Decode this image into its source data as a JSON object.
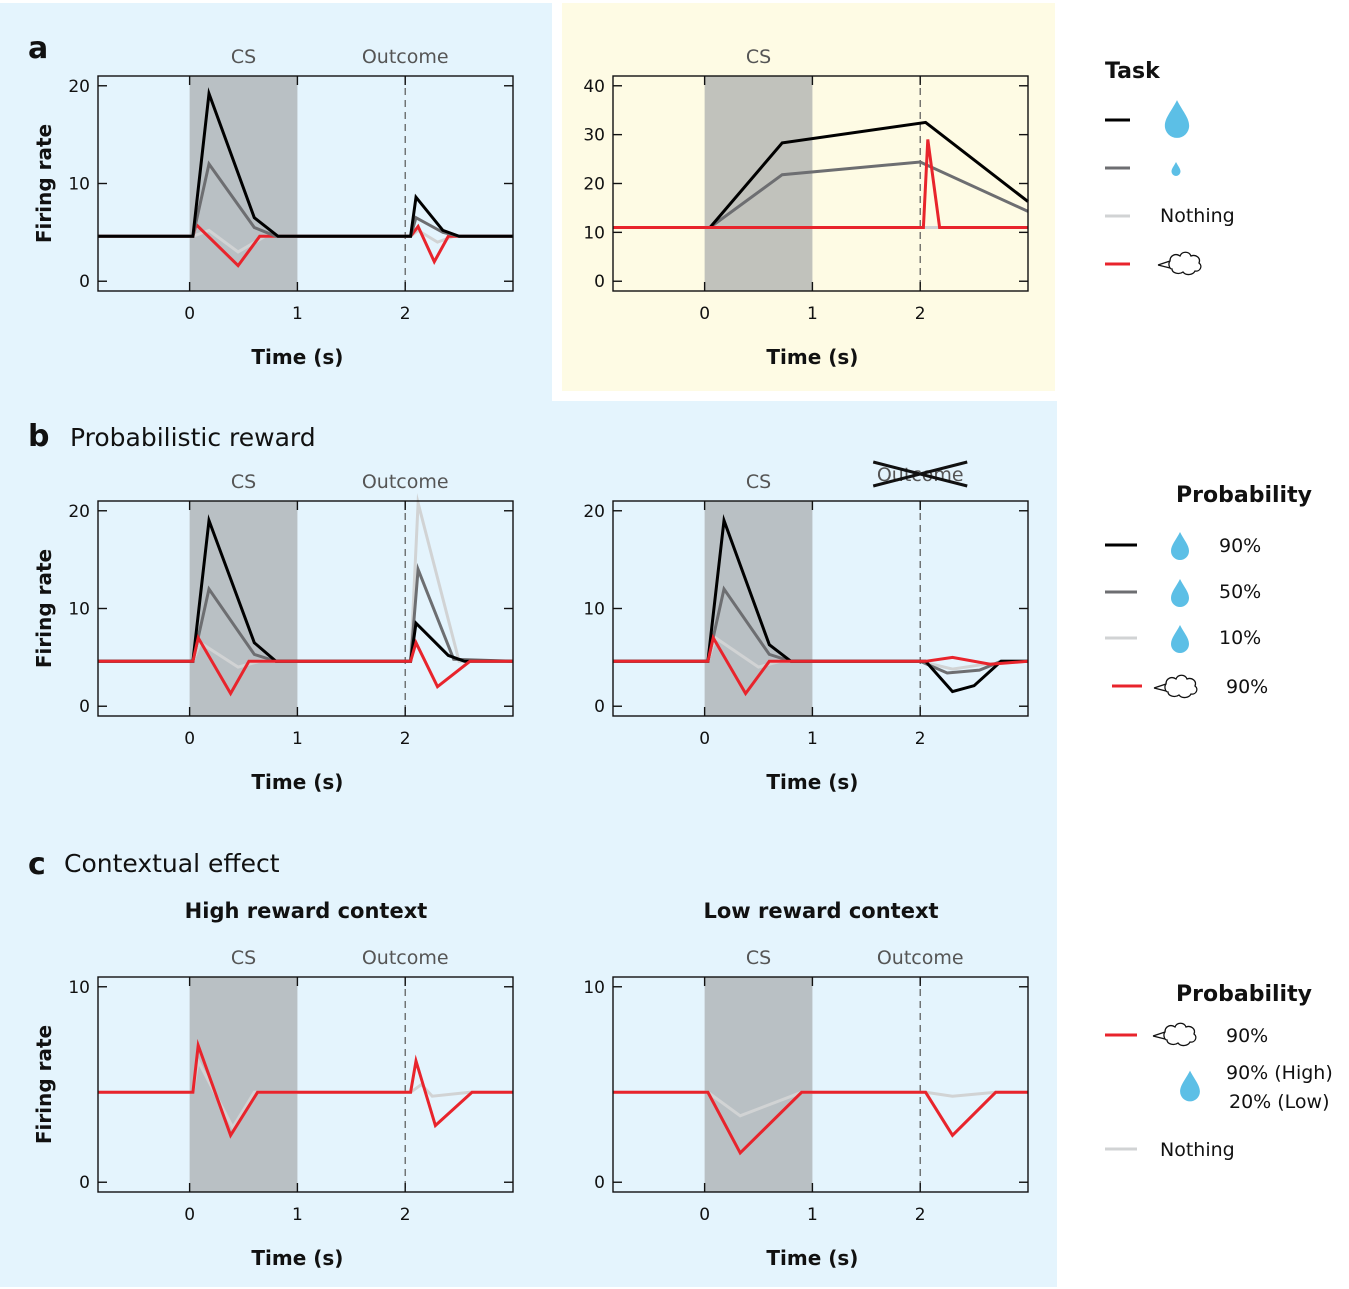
{
  "colors": {
    "bg_blue": "#e4f4fd",
    "bg_yellow": "#fefbe4",
    "cs_shade": "#a6a9ab",
    "large_reward": "#000000",
    "small_reward": "#6d6e71",
    "nothing": "#d1d3d4",
    "airpuff": "#e8242c",
    "drop": "#5cbfe6"
  },
  "panels": {
    "a": {
      "letter": "a",
      "title": ""
    },
    "b": {
      "letter": "b",
      "title": "Probabilistic reward"
    },
    "c": {
      "letter": "c",
      "title": "Contextual effect",
      "left_title": "High reward context",
      "right_title": "Low reward context"
    }
  },
  "legends": {
    "task": {
      "title": "Task",
      "items": [
        {
          "color": "#000000",
          "icon": "large-drop-icon",
          "label": ""
        },
        {
          "color": "#6d6e71",
          "icon": "small-drop-icon",
          "label": ""
        },
        {
          "color": "#d1d3d4",
          "icon": "",
          "label": "Nothing"
        },
        {
          "color": "#e8242c",
          "icon": "airpuff-icon",
          "label": ""
        }
      ]
    },
    "probability_b": {
      "title": "Probability",
      "items": [
        {
          "color": "#000000",
          "icon": "drop-icon",
          "label": "90%"
        },
        {
          "color": "#6d6e71",
          "icon": "drop-icon",
          "label": "50%"
        },
        {
          "color": "#d1d3d4",
          "icon": "drop-icon",
          "label": "10%"
        },
        {
          "color": "#e8242c",
          "icon": "airpuff-icon",
          "label": "90%"
        }
      ]
    },
    "probability_c": {
      "title": "Probability",
      "items": [
        {
          "color": "#e8242c",
          "icon": "airpuff-icon",
          "label": "90%"
        },
        {
          "color": "",
          "icon": "drop-icon",
          "label": "90% (High)",
          "label2": "20% (Low)"
        },
        {
          "color": "#d1d3d4",
          "icon": "",
          "label": "Nothing"
        }
      ]
    }
  },
  "chart_data": [
    {
      "id": "a-left",
      "type": "line",
      "xlabel": "Time (s)",
      "ylabel": "Firing rate",
      "xlim": [
        -0.85,
        3.0
      ],
      "ylim": [
        -1,
        21
      ],
      "xticks": [
        0,
        1,
        2
      ],
      "yticks": [
        0,
        10,
        20
      ],
      "cs_label": "CS",
      "outcome_label": "Outcome",
      "outcome_struck": false,
      "cs_window": [
        0,
        1
      ],
      "outcome_time": 2,
      "series": [
        {
          "color": "#d1d3d4",
          "points": [
            [
              -0.85,
              4.6
            ],
            [
              0.03,
              4.6
            ],
            [
              0.18,
              5.2
            ],
            [
              0.45,
              3.0
            ],
            [
              0.7,
              4.6
            ],
            [
              2.05,
              4.6
            ],
            [
              2.12,
              5.2
            ],
            [
              2.3,
              4.0
            ],
            [
              2.45,
              4.6
            ],
            [
              3.0,
              4.6
            ]
          ]
        },
        {
          "color": "#e8242c",
          "points": [
            [
              -0.85,
              4.6
            ],
            [
              0.03,
              4.6
            ],
            [
              0.06,
              5.8
            ],
            [
              0.45,
              1.6
            ],
            [
              0.65,
              4.6
            ],
            [
              2.05,
              4.6
            ],
            [
              2.12,
              5.6
            ],
            [
              2.27,
              2.0
            ],
            [
              2.4,
              4.6
            ],
            [
              3.0,
              4.6
            ]
          ]
        },
        {
          "color": "#6d6e71",
          "points": [
            [
              -0.85,
              4.6
            ],
            [
              0.03,
              4.6
            ],
            [
              0.18,
              12.0
            ],
            [
              0.6,
              5.5
            ],
            [
              0.8,
              4.6
            ],
            [
              2.05,
              4.6
            ],
            [
              2.1,
              6.5
            ],
            [
              2.35,
              5.0
            ],
            [
              2.5,
              4.6
            ],
            [
              3.0,
              4.6
            ]
          ]
        },
        {
          "color": "#000000",
          "points": [
            [
              -0.85,
              4.6
            ],
            [
              0.03,
              4.6
            ],
            [
              0.18,
              19.2
            ],
            [
              0.6,
              6.5
            ],
            [
              0.82,
              4.6
            ],
            [
              2.05,
              4.6
            ],
            [
              2.1,
              8.6
            ],
            [
              2.35,
              5.2
            ],
            [
              2.5,
              4.6
            ],
            [
              3.0,
              4.6
            ]
          ]
        }
      ]
    },
    {
      "id": "a-right",
      "type": "line",
      "xlabel": "Time (s)",
      "ylabel": "",
      "xlim": [
        -0.85,
        3.0
      ],
      "ylim": [
        -2,
        42
      ],
      "xticks": [
        0,
        1,
        2
      ],
      "yticks": [
        0,
        10,
        20,
        30,
        40
      ],
      "cs_label": "CS",
      "outcome_label": "",
      "outcome_struck": false,
      "cs_window": [
        0,
        1
      ],
      "outcome_time": 2,
      "series": [
        {
          "color": "#d1d3d4",
          "points": [
            [
              -0.85,
              11
            ],
            [
              3.0,
              11
            ]
          ]
        },
        {
          "color": "#6d6e71",
          "points": [
            [
              -0.85,
              11
            ],
            [
              0.05,
              11
            ],
            [
              0.72,
              21.8
            ],
            [
              2.0,
              24.4
            ],
            [
              3.0,
              14.3
            ]
          ]
        },
        {
          "color": "#000000",
          "points": [
            [
              -0.85,
              11
            ],
            [
              0.05,
              11
            ],
            [
              0.72,
              28.3
            ],
            [
              2.05,
              32.5
            ],
            [
              3.0,
              16.3
            ]
          ]
        },
        {
          "color": "#e8242c",
          "points": [
            [
              -0.85,
              11
            ],
            [
              2.03,
              11
            ],
            [
              2.07,
              29
            ],
            [
              2.18,
              11
            ],
            [
              3.0,
              11
            ]
          ]
        }
      ]
    },
    {
      "id": "b-left",
      "type": "line",
      "xlabel": "Time (s)",
      "ylabel": "Firing rate",
      "xlim": [
        -0.85,
        3.0
      ],
      "ylim": [
        -1,
        21
      ],
      "xticks": [
        0,
        1,
        2
      ],
      "yticks": [
        0,
        10,
        20
      ],
      "cs_label": "CS",
      "outcome_label": "Outcome",
      "outcome_struck": false,
      "cs_window": [
        0,
        1
      ],
      "outcome_time": 2,
      "series": [
        {
          "color": "#d1d3d4",
          "points": [
            [
              -0.85,
              4.6
            ],
            [
              0.03,
              4.6
            ],
            [
              0.1,
              6.5
            ],
            [
              0.45,
              4.0
            ],
            [
              0.65,
              4.6
            ],
            [
              2.05,
              4.6
            ],
            [
              2.12,
              20.8
            ],
            [
              2.5,
              4.6
            ],
            [
              3.0,
              4.6
            ]
          ]
        },
        {
          "color": "#6d6e71",
          "points": [
            [
              -0.85,
              4.6
            ],
            [
              0.03,
              4.6
            ],
            [
              0.18,
              12.0
            ],
            [
              0.6,
              5.3
            ],
            [
              0.8,
              4.6
            ],
            [
              2.05,
              4.6
            ],
            [
              2.12,
              14.0
            ],
            [
              2.45,
              4.8
            ],
            [
              3.0,
              4.6
            ]
          ]
        },
        {
          "color": "#000000",
          "points": [
            [
              -0.85,
              4.6
            ],
            [
              0.03,
              4.6
            ],
            [
              0.18,
              19.0
            ],
            [
              0.6,
              6.5
            ],
            [
              0.8,
              4.6
            ],
            [
              2.05,
              4.6
            ],
            [
              2.1,
              8.5
            ],
            [
              2.4,
              5.2
            ],
            [
              2.55,
              4.6
            ],
            [
              3.0,
              4.6
            ]
          ]
        },
        {
          "color": "#e8242c",
          "points": [
            [
              -0.85,
              4.6
            ],
            [
              0.03,
              4.6
            ],
            [
              0.08,
              7.0
            ],
            [
              0.38,
              1.3
            ],
            [
              0.55,
              4.6
            ],
            [
              2.05,
              4.6
            ],
            [
              2.1,
              6.5
            ],
            [
              2.3,
              2.0
            ],
            [
              2.6,
              4.6
            ],
            [
              3.0,
              4.6
            ]
          ]
        }
      ]
    },
    {
      "id": "b-right",
      "type": "line",
      "xlabel": "Time (s)",
      "ylabel": "",
      "xlim": [
        -0.85,
        3.0
      ],
      "ylim": [
        -1,
        21
      ],
      "xticks": [
        0,
        1,
        2
      ],
      "yticks": [
        0,
        10,
        20
      ],
      "cs_label": "CS",
      "outcome_label": "Outcome",
      "outcome_struck": true,
      "cs_window": [
        0,
        1
      ],
      "outcome_time": 2,
      "series": [
        {
          "color": "#d1d3d4",
          "points": [
            [
              -0.85,
              4.6
            ],
            [
              0.03,
              4.6
            ],
            [
              0.1,
              7.0
            ],
            [
              0.5,
              4.0
            ],
            [
              0.7,
              4.6
            ],
            [
              2.0,
              4.6
            ],
            [
              2.3,
              3.8
            ],
            [
              2.6,
              4.3
            ],
            [
              3.0,
              4.6
            ]
          ]
        },
        {
          "color": "#6d6e71",
          "points": [
            [
              -0.85,
              4.6
            ],
            [
              0.03,
              4.6
            ],
            [
              0.18,
              12.0
            ],
            [
              0.6,
              5.3
            ],
            [
              0.8,
              4.6
            ],
            [
              2.0,
              4.6
            ],
            [
              2.25,
              3.4
            ],
            [
              2.55,
              3.7
            ],
            [
              2.75,
              4.6
            ],
            [
              3.0,
              4.6
            ]
          ]
        },
        {
          "color": "#000000",
          "points": [
            [
              -0.85,
              4.6
            ],
            [
              0.03,
              4.6
            ],
            [
              0.18,
              19.0
            ],
            [
              0.6,
              6.3
            ],
            [
              0.8,
              4.6
            ],
            [
              2.05,
              4.6
            ],
            [
              2.3,
              1.5
            ],
            [
              2.5,
              2.1
            ],
            [
              2.75,
              4.6
            ],
            [
              3.0,
              4.6
            ]
          ]
        },
        {
          "color": "#e8242c",
          "points": [
            [
              -0.85,
              4.6
            ],
            [
              0.03,
              4.6
            ],
            [
              0.08,
              7.0
            ],
            [
              0.38,
              1.3
            ],
            [
              0.6,
              4.6
            ],
            [
              2.05,
              4.6
            ],
            [
              2.3,
              5.0
            ],
            [
              2.65,
              4.3
            ],
            [
              3.0,
              4.6
            ]
          ]
        }
      ]
    },
    {
      "id": "c-left",
      "type": "line",
      "xlabel": "Time (s)",
      "ylabel": "Firing rate",
      "xlim": [
        -0.85,
        3.0
      ],
      "ylim": [
        -0.5,
        10.5
      ],
      "xticks": [
        0,
        1,
        2
      ],
      "yticks": [
        0,
        10
      ],
      "cs_label": "CS",
      "outcome_label": "Outcome",
      "outcome_struck": false,
      "cs_window": [
        0,
        1
      ],
      "outcome_time": 2,
      "series": [
        {
          "color": "#d1d3d4",
          "points": [
            [
              -0.85,
              4.6
            ],
            [
              0.03,
              4.6
            ],
            [
              0.08,
              6.2
            ],
            [
              0.4,
              2.8
            ],
            [
              0.6,
              4.6
            ],
            [
              2.05,
              4.6
            ],
            [
              2.15,
              5.0
            ],
            [
              2.25,
              4.4
            ],
            [
              2.6,
              4.6
            ],
            [
              3.0,
              4.6
            ]
          ]
        },
        {
          "color": "#e8242c",
          "points": [
            [
              -0.85,
              4.6
            ],
            [
              0.03,
              4.6
            ],
            [
              0.08,
              7.0
            ],
            [
              0.38,
              2.4
            ],
            [
              0.63,
              4.6
            ],
            [
              2.05,
              4.6
            ],
            [
              2.1,
              6.2
            ],
            [
              2.28,
              2.9
            ],
            [
              2.62,
              4.6
            ],
            [
              3.0,
              4.6
            ]
          ]
        }
      ]
    },
    {
      "id": "c-right",
      "type": "line",
      "xlabel": "Time (s)",
      "ylabel": "",
      "xlim": [
        -0.85,
        3.0
      ],
      "ylim": [
        -0.5,
        10.5
      ],
      "xticks": [
        0,
        1,
        2
      ],
      "yticks": [
        0,
        10
      ],
      "cs_label": "CS",
      "outcome_label": "Outcome",
      "outcome_struck": false,
      "cs_window": [
        0,
        1
      ],
      "outcome_time": 2,
      "series": [
        {
          "color": "#d1d3d4",
          "points": [
            [
              -0.85,
              4.6
            ],
            [
              0.03,
              4.6
            ],
            [
              0.33,
              3.4
            ],
            [
              0.9,
              4.6
            ],
            [
              2.05,
              4.6
            ],
            [
              2.3,
              4.4
            ],
            [
              2.7,
              4.6
            ],
            [
              3.0,
              4.6
            ]
          ]
        },
        {
          "color": "#e8242c",
          "points": [
            [
              -0.85,
              4.6
            ],
            [
              0.03,
              4.6
            ],
            [
              0.33,
              1.5
            ],
            [
              0.9,
              4.6
            ],
            [
              2.05,
              4.6
            ],
            [
              2.3,
              2.4
            ],
            [
              2.7,
              4.6
            ],
            [
              3.0,
              4.6
            ]
          ]
        }
      ]
    }
  ]
}
